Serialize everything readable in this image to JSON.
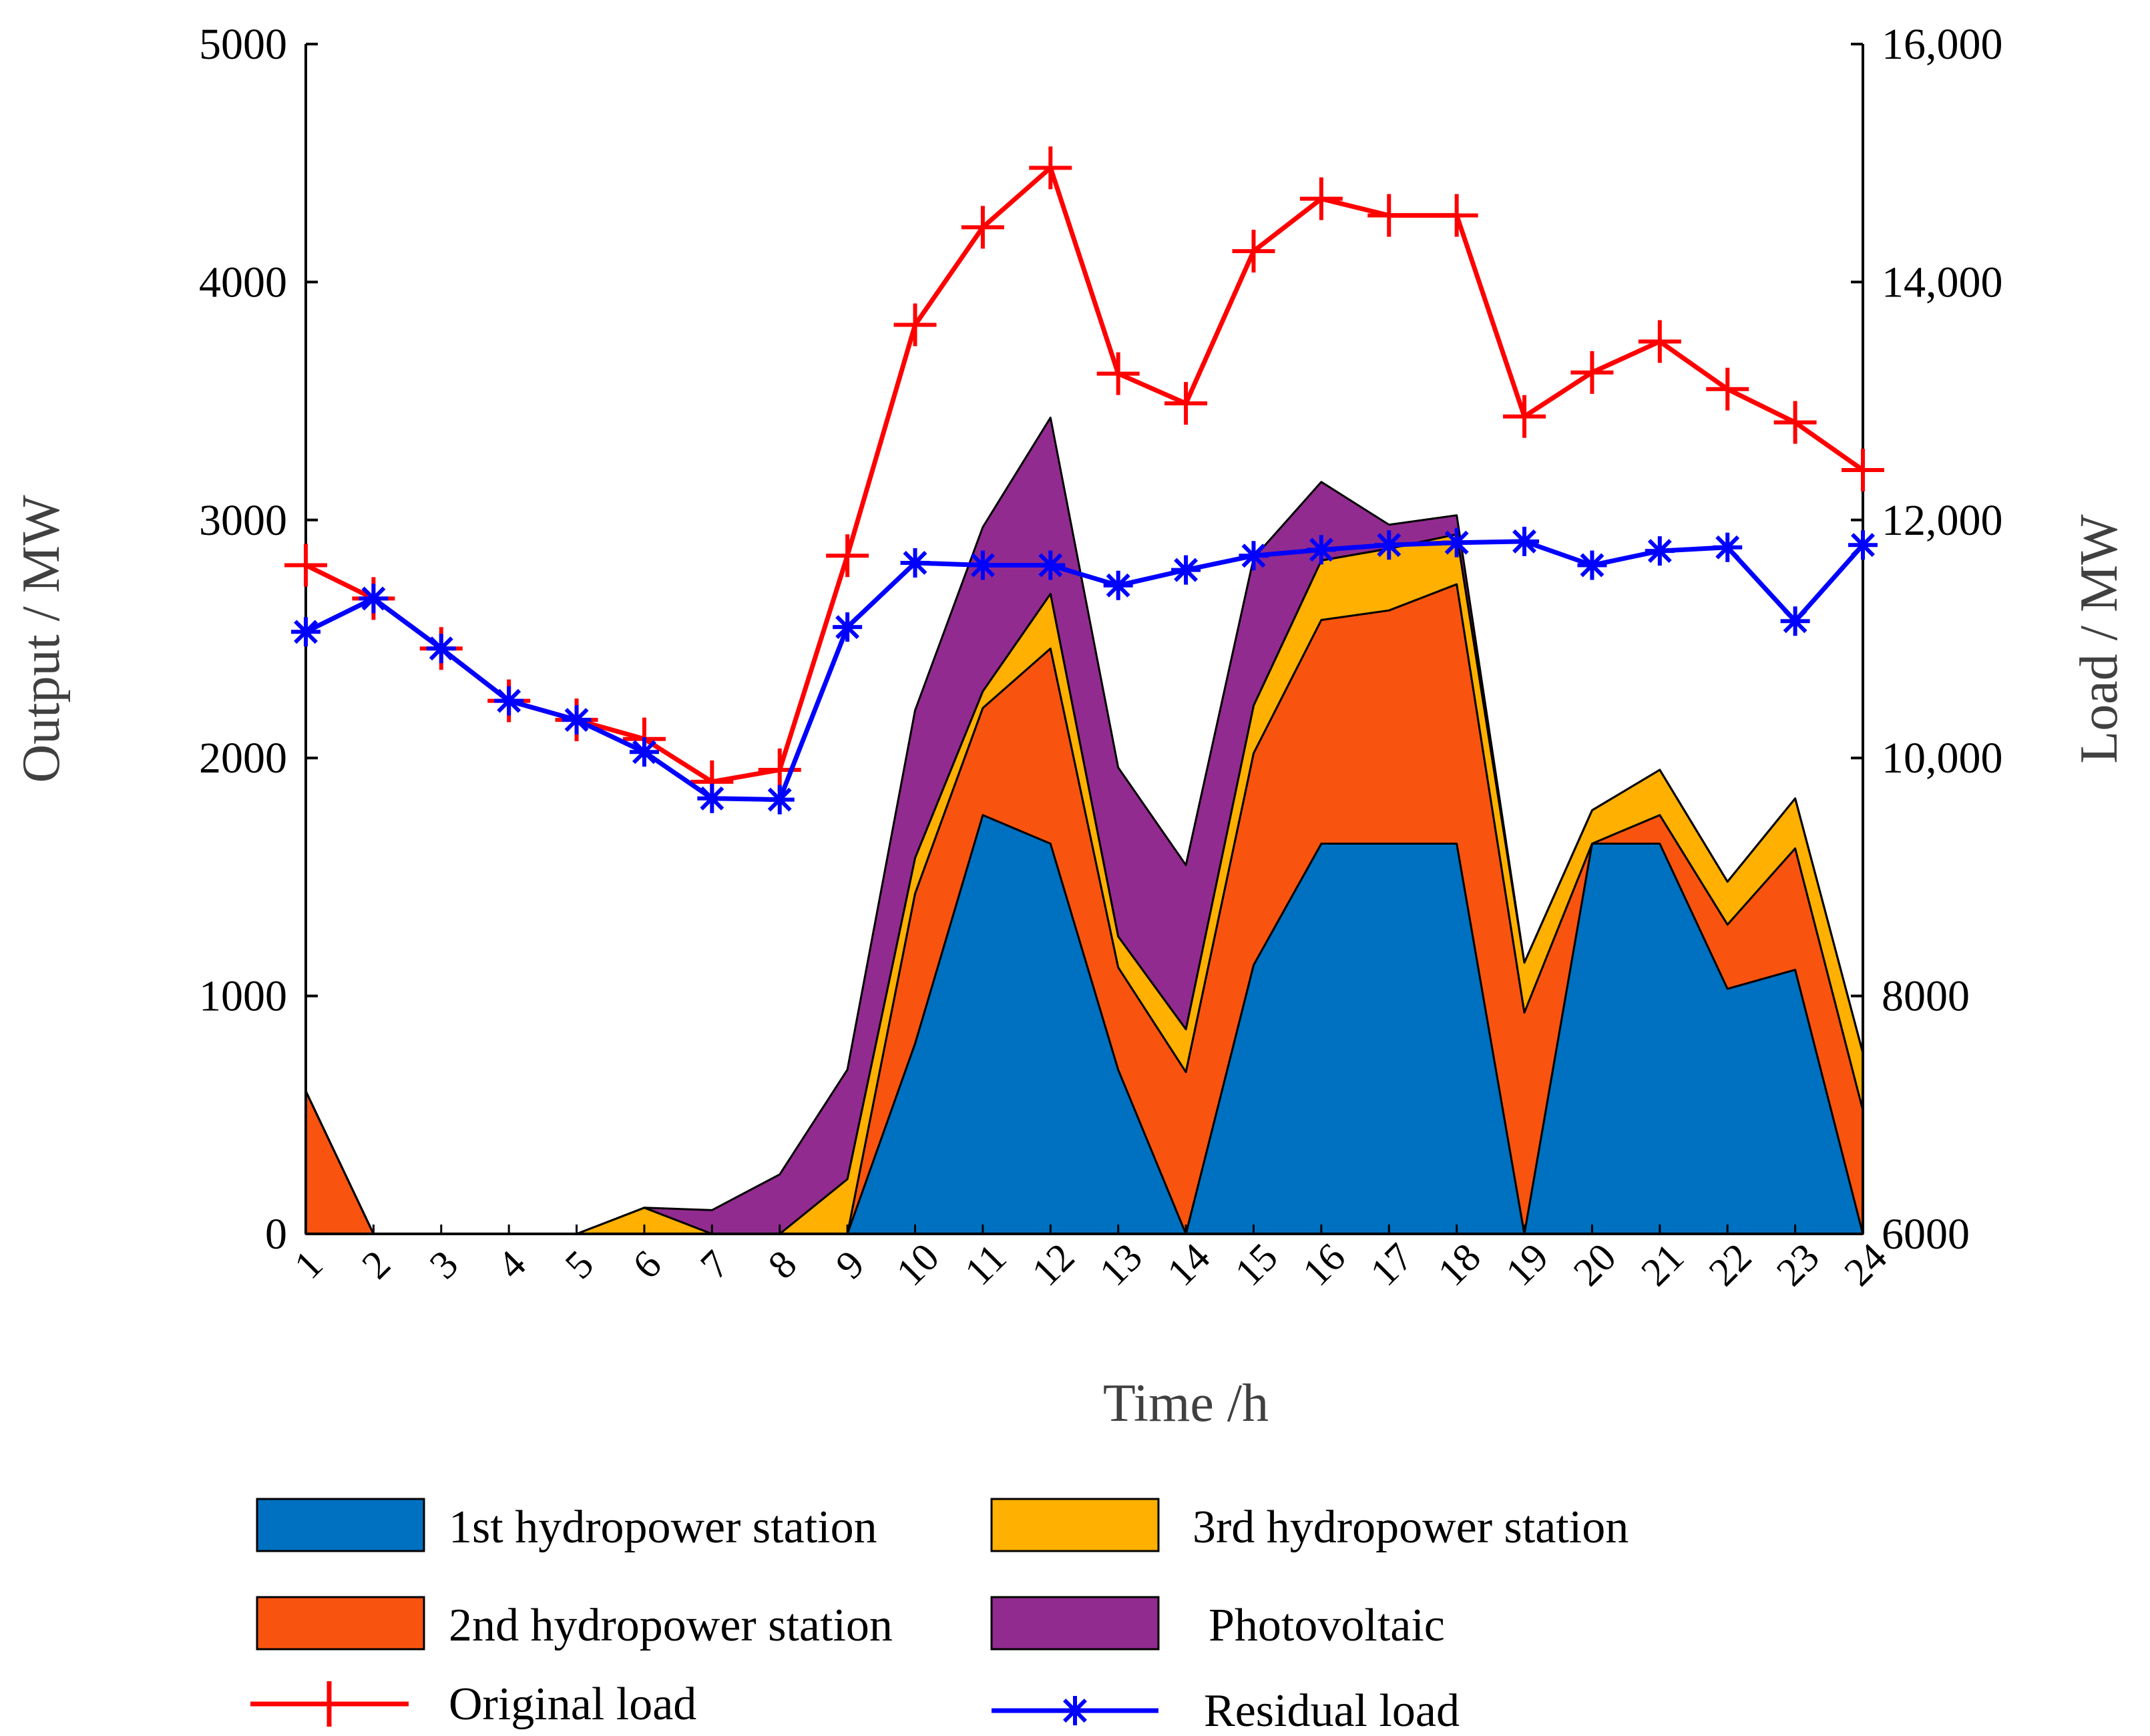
{
  "chart_data": {
    "type": "area",
    "x": [
      1,
      2,
      3,
      4,
      5,
      6,
      7,
      8,
      9,
      10,
      11,
      12,
      13,
      14,
      15,
      16,
      17,
      18,
      19,
      20,
      21,
      22,
      23,
      24
    ],
    "xlabel": "Time /h",
    "ylabel_left": "Output / MW",
    "ylabel_right": "Load  / MW",
    "ylim_left": [
      0,
      5000
    ],
    "ylim_right": [
      6000,
      16000
    ],
    "yticks_left": [
      "0",
      "1000",
      "2000",
      "3000",
      "4000",
      "5000"
    ],
    "yticks_right": [
      "6000",
      "8000",
      "10,000",
      "12,000",
      "14,000",
      "16,000"
    ],
    "stacked_series": [
      {
        "name": "1st hydropower station",
        "color": "#0070C0",
        "values": [
          0,
          0,
          0,
          0,
          0,
          0,
          0,
          0,
          0,
          800,
          1760,
          1640,
          690,
          0,
          1130,
          1640,
          1640,
          1640,
          0,
          1640,
          1640,
          1030,
          1110,
          0
        ]
      },
      {
        "name": "2nd hydropower station",
        "color": "#F8540F",
        "values": [
          600,
          0,
          0,
          0,
          0,
          0,
          0,
          0,
          0,
          630,
          450,
          820,
          430,
          680,
          890,
          940,
          980,
          1090,
          930,
          0,
          120,
          270,
          510,
          520
        ]
      },
      {
        "name": "3rd hydropower station",
        "color": "#FFB000",
        "values": [
          0,
          0,
          0,
          0,
          0,
          110,
          0,
          0,
          230,
          150,
          70,
          230,
          130,
          180,
          200,
          250,
          260,
          210,
          210,
          140,
          190,
          180,
          210,
          240
        ]
      },
      {
        "name": "Photovoltaic",
        "color": "#922B8F",
        "values": [
          0,
          0,
          0,
          0,
          0,
          0,
          100,
          250,
          460,
          620,
          690,
          740,
          710,
          690,
          620,
          330,
          100,
          80,
          0,
          0,
          0,
          0,
          0,
          0
        ]
      }
    ],
    "line_series": [
      {
        "name": "Original load",
        "color": "#FF0000",
        "marker": "+",
        "axis": "right",
        "values": [
          11620,
          11340,
          10920,
          10480,
          10320,
          10160,
          9800,
          9900,
          11700,
          13640,
          14460,
          14960,
          13230,
          12980,
          14260,
          14700,
          14560,
          14560,
          12870,
          13240,
          13500,
          13100,
          12820,
          12420
        ]
      },
      {
        "name": "Residual load",
        "color": "#0000FF",
        "marker": "*",
        "axis": "right",
        "values": [
          11060,
          11340,
          10920,
          10480,
          10320,
          10050,
          9660,
          9650,
          11100,
          11640,
          11620,
          11620,
          11450,
          11580,
          11700,
          11750,
          11790,
          11810,
          11820,
          11620,
          11740,
          11770,
          11150,
          11790
        ]
      }
    ],
    "legend": [
      "1st hydropower station",
      "3rd hydropower station",
      "2nd hydropower station",
      "Photovoltaic",
      "Original load",
      "Residual load"
    ]
  }
}
